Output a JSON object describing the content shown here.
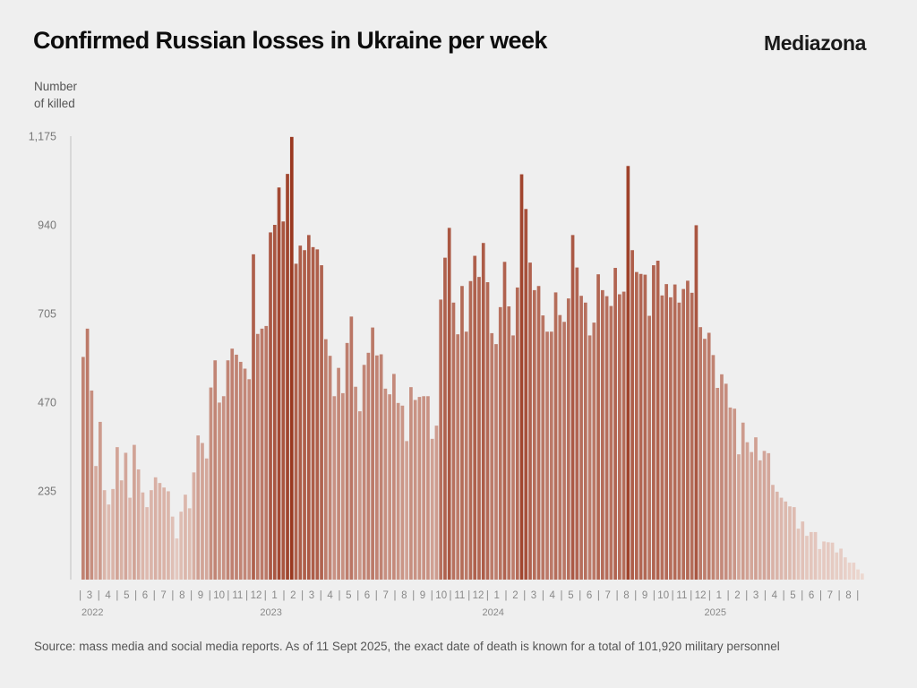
{
  "header": {
    "title": "Confirmed Russian losses in Ukraine per week",
    "brand": "Mediazona"
  },
  "footer": {
    "source": "Source: mass media and social media reports. As of 11 Sept 2025, the exact date of death is known for a total of 101,920 military personnel"
  },
  "colors": {
    "background": "#efefef",
    "bar_light": "#eedbd4",
    "bar_dark": "#9a3820",
    "axis": "#c8c8c8",
    "label": "#777777"
  },
  "chart_data": {
    "type": "bar",
    "title": "Confirmed Russian losses in Ukraine per week",
    "xlabel": "",
    "ylabel_lines": [
      "Number",
      "of killed"
    ],
    "ylim": [
      0,
      1175
    ],
    "yticks": [
      235,
      470,
      705,
      940,
      1175
    ],
    "ytick_labels": [
      "235",
      "470",
      "705",
      "940",
      "1,175"
    ],
    "grid": false,
    "legend": "none",
    "x_unit": "week",
    "start": "late February 2022",
    "months": [
      {
        "label": "3",
        "year": "2022"
      },
      {
        "label": "4"
      },
      {
        "label": "5"
      },
      {
        "label": "6"
      },
      {
        "label": "7"
      },
      {
        "label": "8"
      },
      {
        "label": "9"
      },
      {
        "label": "10"
      },
      {
        "label": "11"
      },
      {
        "label": "12"
      },
      {
        "label": "1",
        "year": "2023"
      },
      {
        "label": "2"
      },
      {
        "label": "3"
      },
      {
        "label": "4"
      },
      {
        "label": "5"
      },
      {
        "label": "6"
      },
      {
        "label": "7"
      },
      {
        "label": "8"
      },
      {
        "label": "9"
      },
      {
        "label": "10"
      },
      {
        "label": "11"
      },
      {
        "label": "12"
      },
      {
        "label": "1",
        "year": "2024"
      },
      {
        "label": "2"
      },
      {
        "label": "3"
      },
      {
        "label": "4"
      },
      {
        "label": "5"
      },
      {
        "label": "6"
      },
      {
        "label": "7"
      },
      {
        "label": "8"
      },
      {
        "label": "9"
      },
      {
        "label": "10"
      },
      {
        "label": "11"
      },
      {
        "label": "12"
      },
      {
        "label": "1",
        "year": "2025"
      },
      {
        "label": "2"
      },
      {
        "label": "3"
      },
      {
        "label": "4"
      },
      {
        "label": "5"
      },
      {
        "label": "6"
      },
      {
        "label": "7"
      },
      {
        "label": "8"
      }
    ],
    "values": [
      590,
      665,
      501,
      301,
      418,
      237,
      199,
      240,
      351,
      263,
      336,
      217,
      357,
      292,
      231,
      192,
      237,
      271,
      256,
      244,
      234,
      167,
      109,
      180,
      225,
      189,
      284,
      382,
      362,
      321,
      509,
      581,
      469,
      486,
      581,
      612,
      596,
      577,
      559,
      531,
      862,
      651,
      665,
      672,
      920,
      940,
      1039,
      949,
      1075,
      1173,
      837,
      885,
      873,
      913,
      881,
      875,
      833,
      637,
      593,
      486,
      561,
      494,
      627,
      697,
      511,
      446,
      569,
      601,
      668,
      594,
      597,
      506,
      491,
      545,
      468,
      461,
      367,
      510,
      476,
      484,
      486,
      486,
      373,
      408,
      742,
      853,
      932,
      734,
      650,
      778,
      657,
      791,
      858,
      802,
      892,
      788,
      653,
      624,
      722,
      842,
      724,
      647,
      774,
      1074,
      982,
      840,
      767,
      778,
      700,
      657,
      657,
      761,
      701,
      683,
      745,
      913,
      827,
      752,
      734,
      647,
      681,
      809,
      767,
      751,
      725,
      826,
      756,
      763,
      1096,
      873,
      815,
      810,
      808,
      699,
      833,
      845,
      753,
      783,
      748,
      782,
      734,
      770,
      792,
      760,
      939,
      669,
      638,
      654,
      595,
      508,
      544,
      519,
      456,
      453,
      332,
      416,
      364,
      338,
      377,
      316,
      341,
      335,
      251,
      233,
      217,
      207,
      194,
      192,
      135,
      154,
      116,
      126,
      126,
      81,
      101,
      99,
      98,
      72,
      82,
      59,
      45,
      45,
      27,
      16
    ]
  }
}
